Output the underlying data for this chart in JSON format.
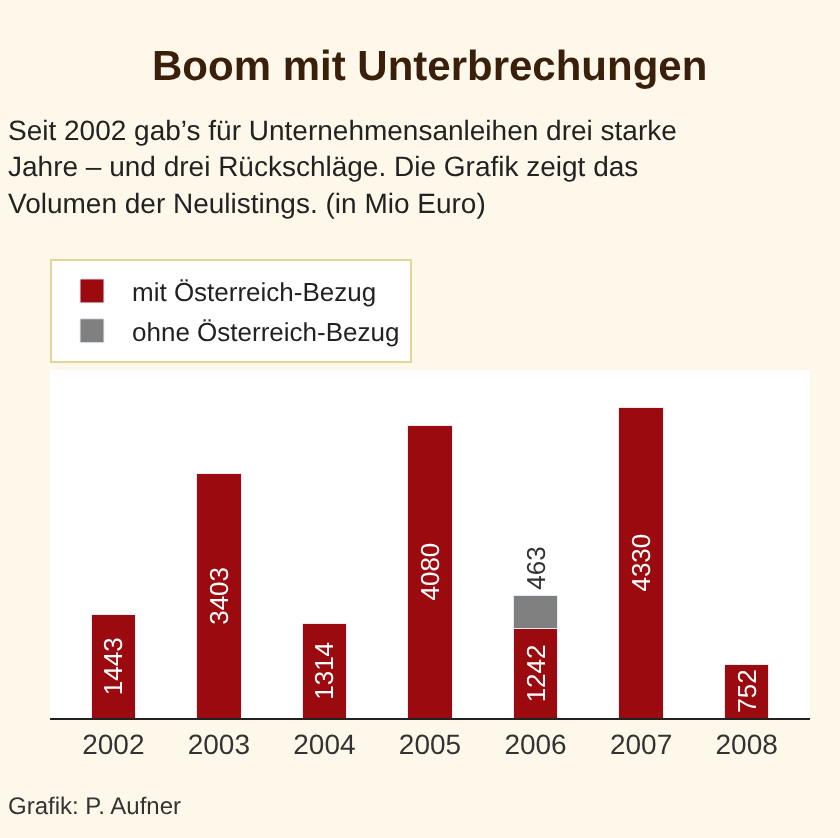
{
  "chart_data": {
    "type": "bar",
    "title": "Boom mit Unterbrechungen",
    "subtitle": "Seit 2002 gab’s für Unternehmensanleihen drei starke Jahre – und drei Rückschläge. Die Grafik zeigt das Volumen der Neulistings. (in Mio Euro)",
    "categories": [
      "2002",
      "2003",
      "2004",
      "2005",
      "2006",
      "2007",
      "2008"
    ],
    "series": [
      {
        "name": "mit Österreich-Bezug",
        "color": "#9b0a0e",
        "values": [
          1443,
          3403,
          1314,
          4080,
          1242,
          4330,
          752
        ]
      },
      {
        "name": "ohne Österreich-Bezug",
        "color": "#808080",
        "values": [
          null,
          null,
          null,
          null,
          463,
          null,
          null
        ]
      }
    ],
    "stacked": true,
    "data_labels": true,
    "legend": "top left",
    "annotations": [
      "Grafik: P. Aufner"
    ]
  }
}
